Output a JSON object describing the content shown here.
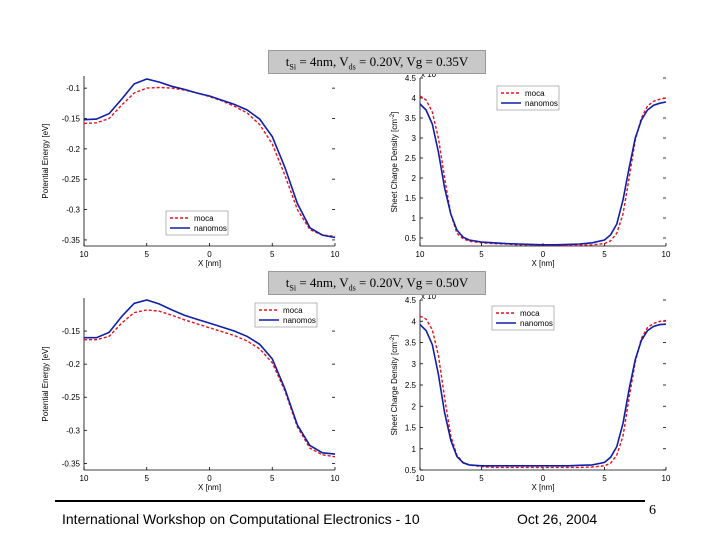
{
  "slide": {
    "conditions": [
      {
        "t": "t",
        "t_sub": "Si",
        "eq1": " = 4nm, V",
        "v_sub": "ds",
        "rest": " = 0.20V, Vg = 0.35V"
      },
      {
        "t": "t",
        "t_sub": "Si",
        "eq1": " = 4nm, V",
        "v_sub": "ds",
        "rest": " = 0.20V, Vg = 0.50V"
      }
    ],
    "footer": {
      "workshop": "International Workshop on Computational Electronics - 10",
      "date": "Oct 26, 2004",
      "page": "6"
    },
    "colors": {
      "moca": "#e8101e",
      "nanomos": "#0e1fa8"
    }
  },
  "chart_data": [
    {
      "id": "pe-top",
      "type": "line",
      "ylabel": "Potential Energy [eV]",
      "xlabel": "X [nm]",
      "xlim": [
        -10,
        10
      ],
      "ylim": [
        -0.36,
        -0.08
      ],
      "xticks": [
        "10",
        "5",
        "0",
        "5",
        "10"
      ],
      "yticks": [
        -0.1,
        -0.15,
        -0.2,
        -0.25,
        -0.3,
        -0.35
      ],
      "ytick_labels": [
        "-0.1",
        "-0.15",
        "-0.2",
        "-0.25",
        "-0.3",
        "-0.35"
      ],
      "legend": "bottom-right",
      "series": [
        {
          "name": "moca",
          "style": "dashed",
          "x": [
            -10,
            -9,
            -8,
            -7,
            -6,
            -5,
            -4,
            -3,
            -2,
            -1,
            0,
            1,
            2,
            3,
            4,
            5,
            6,
            7,
            8,
            9,
            10
          ],
          "y": [
            -0.158,
            -0.157,
            -0.15,
            -0.128,
            -0.108,
            -0.1,
            -0.099,
            -0.1,
            -0.103,
            -0.108,
            -0.114,
            -0.121,
            -0.13,
            -0.141,
            -0.16,
            -0.192,
            -0.243,
            -0.3,
            -0.333,
            -0.342,
            -0.344
          ]
        },
        {
          "name": "nanomos",
          "style": "solid",
          "x": [
            -10,
            -9,
            -8,
            -7,
            -6,
            -5,
            -4,
            -3,
            -2,
            -1,
            0,
            1,
            2,
            3,
            4,
            5,
            6,
            7,
            8,
            9,
            10
          ],
          "y": [
            -0.152,
            -0.151,
            -0.142,
            -0.118,
            -0.093,
            -0.085,
            -0.09,
            -0.097,
            -0.102,
            -0.108,
            -0.113,
            -0.12,
            -0.127,
            -0.136,
            -0.151,
            -0.18,
            -0.23,
            -0.29,
            -0.33,
            -0.342,
            -0.346
          ]
        }
      ]
    },
    {
      "id": "sc-top",
      "type": "line",
      "ylabel": "Sheet Charge Density [cm",
      "ylabel_sup": "-2",
      "ylabel_close": "]",
      "scale_label": "x 10",
      "xlabel": "X [nm]",
      "xlim": [
        -10,
        10
      ],
      "ylim": [
        0.3,
        4.5
      ],
      "xticks": [
        "10",
        "5",
        "0",
        "5",
        "10"
      ],
      "yticks": [
        0.5,
        1,
        1.5,
        2,
        2.5,
        3,
        3.5,
        4,
        4.5
      ],
      "ytick_labels": [
        "0.5",
        "1",
        "1.5",
        "2",
        "2.5",
        "3",
        "3.5",
        "4",
        "4.5"
      ],
      "legend": "top-right",
      "series": [
        {
          "name": "moca",
          "style": "dashed",
          "x": [
            -10,
            -9.5,
            -9,
            -8.5,
            -8,
            -7.5,
            -7,
            -6.5,
            -6,
            -5,
            -4,
            -3,
            -2,
            -1,
            0,
            1,
            2,
            3,
            4,
            5,
            5.5,
            6,
            6.5,
            7,
            7.5,
            8,
            8.5,
            9,
            9.5,
            10
          ],
          "y": [
            4.05,
            3.95,
            3.65,
            3.0,
            2.0,
            1.1,
            0.62,
            0.48,
            0.42,
            0.38,
            0.36,
            0.35,
            0.33,
            0.32,
            0.31,
            0.31,
            0.31,
            0.32,
            0.33,
            0.36,
            0.43,
            0.62,
            1.1,
            2.0,
            2.95,
            3.5,
            3.8,
            3.92,
            3.97,
            4.0
          ]
        },
        {
          "name": "nanomos",
          "style": "solid",
          "x": [
            -10,
            -9.5,
            -9,
            -8.5,
            -8,
            -7.5,
            -7,
            -6.5,
            -6,
            -5,
            -4,
            -3,
            -2,
            -1,
            0,
            1,
            2,
            3,
            4,
            5,
            5.5,
            6,
            6.5,
            7,
            7.5,
            8,
            8.5,
            9,
            9.5,
            10
          ],
          "y": [
            3.85,
            3.7,
            3.35,
            2.65,
            1.75,
            1.1,
            0.7,
            0.52,
            0.45,
            0.4,
            0.38,
            0.36,
            0.35,
            0.34,
            0.33,
            0.33,
            0.34,
            0.35,
            0.38,
            0.45,
            0.58,
            0.85,
            1.45,
            2.25,
            3.0,
            3.45,
            3.7,
            3.82,
            3.87,
            3.9
          ]
        }
      ]
    },
    {
      "id": "pe-bottom",
      "type": "line",
      "ylabel": "Potential Energy [eV]",
      "xlabel": "X [nm]",
      "xlim": [
        -10,
        10
      ],
      "ylim": [
        -0.36,
        -0.1
      ],
      "xticks": [
        "10",
        "5",
        "0",
        "5",
        "10"
      ],
      "yticks": [
        -0.15,
        -0.2,
        -0.25,
        -0.3,
        -0.35
      ],
      "ytick_labels": [
        "-0.15",
        "-0.2",
        "-0.25",
        "-0.3",
        "-0.35"
      ],
      "legend": "top-right",
      "series": [
        {
          "name": "moca",
          "style": "dashed",
          "x": [
            -10,
            -9,
            -8,
            -7,
            -6,
            -5,
            -4,
            -3,
            -2,
            -1,
            0,
            1,
            2,
            3,
            4,
            5,
            6,
            7,
            8,
            9,
            10
          ],
          "y": [
            -0.163,
            -0.163,
            -0.158,
            -0.138,
            -0.122,
            -0.118,
            -0.12,
            -0.126,
            -0.133,
            -0.139,
            -0.145,
            -0.151,
            -0.157,
            -0.165,
            -0.177,
            -0.198,
            -0.24,
            -0.295,
            -0.327,
            -0.337,
            -0.34
          ]
        },
        {
          "name": "nanomos",
          "style": "solid",
          "x": [
            -10,
            -9,
            -8,
            -7,
            -6,
            -5,
            -4,
            -3,
            -2,
            -1,
            0,
            1,
            2,
            3,
            4,
            5,
            6,
            7,
            8,
            9,
            10
          ],
          "y": [
            -0.16,
            -0.16,
            -0.152,
            -0.128,
            -0.108,
            -0.103,
            -0.109,
            -0.118,
            -0.126,
            -0.132,
            -0.138,
            -0.144,
            -0.15,
            -0.158,
            -0.17,
            -0.192,
            -0.237,
            -0.292,
            -0.323,
            -0.334,
            -0.336
          ]
        }
      ]
    },
    {
      "id": "sc-bottom",
      "type": "line",
      "ylabel": "Sheet Charge Density [cm",
      "ylabel_sup": "-2",
      "ylabel_close": "]",
      "scale_label": "x 10",
      "xlabel": "X [nm]",
      "xlim": [
        -10,
        10
      ],
      "ylim": [
        0.5,
        4.5
      ],
      "xticks": [
        "10",
        "5",
        "0",
        "5",
        "10"
      ],
      "yticks": [
        0.5,
        1,
        1.5,
        2,
        2.5,
        3,
        3.5,
        4,
        4.5
      ],
      "ytick_labels": [
        "0.5",
        "1",
        "1.5",
        "2",
        "2.5",
        "3",
        "3.5",
        "4",
        "4.5"
      ],
      "legend": "top-right",
      "series": [
        {
          "name": "moca",
          "style": "dashed",
          "x": [
            -10,
            -9.5,
            -9,
            -8.5,
            -8,
            -7.5,
            -7,
            -6.5,
            -6,
            -5,
            -4,
            -3,
            -2,
            -1,
            0,
            1,
            2,
            3,
            4,
            5,
            5.5,
            6,
            6.5,
            7,
            7.5,
            8,
            8.5,
            9,
            9.5,
            10
          ],
          "y": [
            4.12,
            4.05,
            3.8,
            3.2,
            2.2,
            1.3,
            0.85,
            0.68,
            0.62,
            0.58,
            0.56,
            0.56,
            0.56,
            0.56,
            0.56,
            0.56,
            0.56,
            0.56,
            0.57,
            0.6,
            0.66,
            0.85,
            1.3,
            2.2,
            3.05,
            3.6,
            3.85,
            3.95,
            4.0,
            4.02
          ]
        },
        {
          "name": "nanomos",
          "style": "solid",
          "x": [
            -10,
            -9.5,
            -9,
            -8.5,
            -8,
            -7.5,
            -7,
            -6.5,
            -6,
            -5,
            -4,
            -3,
            -2,
            -1,
            0,
            1,
            2,
            3,
            4,
            5,
            5.5,
            6,
            6.5,
            7,
            7.5,
            8,
            8.5,
            9,
            9.5,
            10
          ],
          "y": [
            3.92,
            3.78,
            3.45,
            2.75,
            1.85,
            1.2,
            0.82,
            0.67,
            0.62,
            0.6,
            0.6,
            0.6,
            0.6,
            0.6,
            0.6,
            0.6,
            0.6,
            0.61,
            0.62,
            0.68,
            0.8,
            1.05,
            1.6,
            2.4,
            3.1,
            3.55,
            3.78,
            3.88,
            3.92,
            3.93
          ]
        }
      ]
    }
  ]
}
